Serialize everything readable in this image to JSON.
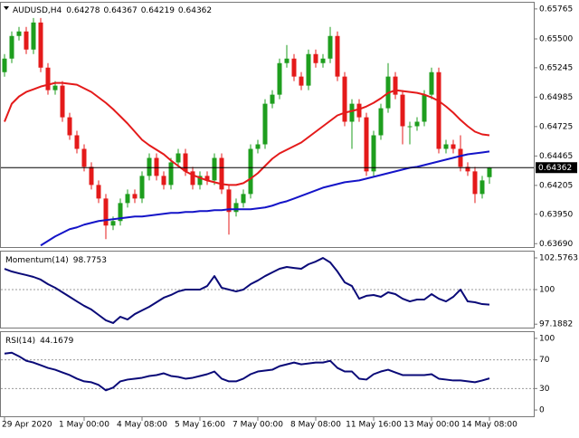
{
  "chart_data": [
    {
      "type": "candlestick",
      "symbol": "AUDUSD,H4",
      "categories": [
        "29 Apr 2020",
        null,
        null,
        null,
        null,
        null,
        null,
        null,
        null,
        null,
        null,
        "1 May 00:00",
        null,
        null,
        null,
        null,
        null,
        null,
        null,
        "4 May 08:00",
        null,
        null,
        null,
        null,
        null,
        null,
        null,
        "5 May 16:00",
        null,
        null,
        null,
        null,
        null,
        null,
        null,
        "7 May 00:00",
        null,
        null,
        null,
        null,
        null,
        null,
        null,
        "8 May 08:00",
        null,
        null,
        null,
        null,
        null,
        null,
        null,
        "11 May 16:00",
        null,
        null,
        null,
        null,
        null,
        null,
        null,
        "13 May 00:00",
        null,
        null,
        null,
        null,
        null,
        null,
        null,
        "14 May 08:00"
      ],
      "open": [
        0.65206,
        0.65326,
        0.65526,
        0.65566,
        0.65406,
        0.65645,
        0.65246,
        0.65047,
        0.65087,
        0.64807,
        0.64648,
        0.64528,
        0.64369,
        0.64209,
        0.64089,
        0.6385,
        0.6389,
        0.64049,
        0.64129,
        0.64089,
        0.64289,
        0.64448,
        0.64289,
        0.64209,
        0.64408,
        0.64488,
        0.64329,
        0.64209,
        0.64289,
        0.64249,
        0.64448,
        0.64169,
        0.6397,
        0.64049,
        0.64129,
        0.64528,
        0.64568,
        0.64927,
        0.65007,
        0.65286,
        0.65326,
        0.65167,
        0.65087,
        0.65366,
        0.65286,
        0.65326,
        0.65526,
        0.65167,
        0.64768,
        0.64927,
        0.64807,
        0.64329,
        0.64648,
        0.64887,
        0.65167,
        0.65007,
        0.64728,
        0.64728,
        0.64768,
        0.65007,
        0.65206,
        0.64528,
        0.64568,
        0.64528,
        0.64369,
        0.64329,
        0.64129,
        0.64278
      ],
      "high": [
        0.65366,
        0.65566,
        0.65606,
        0.65606,
        0.65685,
        0.65685,
        0.65286,
        0.65127,
        0.65127,
        0.64847,
        0.64688,
        0.64568,
        0.64409,
        0.64249,
        0.64129,
        0.6393,
        0.64089,
        0.64169,
        0.64169,
        0.64329,
        0.64488,
        0.64488,
        0.64329,
        0.64448,
        0.64528,
        0.64528,
        0.64369,
        0.64329,
        0.64329,
        0.64488,
        0.64488,
        0.64209,
        0.64089,
        0.64169,
        0.64568,
        0.64608,
        0.64967,
        0.65047,
        0.65326,
        0.65446,
        0.65366,
        0.65207,
        0.65406,
        0.65406,
        0.65366,
        0.65606,
        0.65566,
        0.65207,
        0.64967,
        0.64967,
        0.64847,
        0.64688,
        0.64927,
        0.65286,
        0.65207,
        0.65047,
        0.64768,
        0.64808,
        0.65047,
        0.65246,
        0.65246,
        0.64608,
        0.64608,
        0.64648,
        0.64409,
        0.64369,
        0.64289,
        0.64367
      ],
      "low": [
        0.65166,
        0.65286,
        0.65486,
        0.65366,
        0.65366,
        0.65206,
        0.65007,
        0.65007,
        0.64767,
        0.64608,
        0.64488,
        0.64329,
        0.64169,
        0.64049,
        0.6373,
        0.6381,
        0.6385,
        0.64009,
        0.64049,
        0.64049,
        0.64249,
        0.64249,
        0.64169,
        0.64169,
        0.64368,
        0.64289,
        0.64169,
        0.64169,
        0.64209,
        0.64209,
        0.64129,
        0.6377,
        0.6393,
        0.64009,
        0.64089,
        0.64488,
        0.64528,
        0.64887,
        0.64967,
        0.65246,
        0.65127,
        0.65047,
        0.65047,
        0.65246,
        0.65246,
        0.65286,
        0.65127,
        0.64728,
        0.64528,
        0.64767,
        0.64289,
        0.64289,
        0.64608,
        0.64847,
        0.64967,
        0.64568,
        0.64568,
        0.64688,
        0.64728,
        0.64967,
        0.64488,
        0.64488,
        0.64488,
        0.64329,
        0.64289,
        0.64049,
        0.64089,
        0.64219
      ],
      "close": [
        0.65326,
        0.65526,
        0.65566,
        0.65406,
        0.65645,
        0.65246,
        0.65047,
        0.65087,
        0.64807,
        0.64648,
        0.64528,
        0.64369,
        0.64209,
        0.64089,
        0.6385,
        0.6389,
        0.64049,
        0.64129,
        0.64089,
        0.64289,
        0.64448,
        0.64289,
        0.64209,
        0.64408,
        0.64488,
        0.64329,
        0.64209,
        0.64289,
        0.64249,
        0.64448,
        0.64169,
        0.6397,
        0.64049,
        0.64129,
        0.64528,
        0.64568,
        0.64927,
        0.65007,
        0.65286,
        0.65326,
        0.65167,
        0.65087,
        0.65366,
        0.65286,
        0.65326,
        0.65526,
        0.65167,
        0.64768,
        0.64927,
        0.64807,
        0.64329,
        0.64648,
        0.64887,
        0.65167,
        0.65007,
        0.64728,
        0.64728,
        0.64768,
        0.65007,
        0.65206,
        0.64528,
        0.64568,
        0.64528,
        0.64369,
        0.64329,
        0.64129,
        0.64249,
        0.64362
      ],
      "up_color": "#1e9e1e",
      "down_color": "#e41a1a",
      "series": [
        {
          "color": "#e41a1a",
          "values": [
            0.64768,
            0.64927,
            0.64991,
            0.65031,
            0.65055,
            0.65079,
            0.65095,
            0.65111,
            0.65111,
            0.65103,
            0.65095,
            0.65063,
            0.65031,
            0.64983,
            0.64935,
            0.64879,
            0.64816,
            0.64752,
            0.6468,
            0.64608,
            0.6456,
            0.6452,
            0.6448,
            0.64425,
            0.64377,
            0.64329,
            0.64297,
            0.64273,
            0.64249,
            0.64233,
            0.64217,
            0.64209,
            0.64209,
            0.64225,
            0.64265,
            0.64313,
            0.64377,
            0.64441,
            0.64488,
            0.6452,
            0.64552,
            0.64584,
            0.64632,
            0.6468,
            0.64728,
            0.64776,
            0.64824,
            0.64848,
            0.64863,
            0.64879,
            0.64903,
            0.64935,
            0.64975,
            0.65023,
            0.65047,
            0.65039,
            0.65031,
            0.65023,
            0.65007,
            0.64983,
            0.64951,
            0.64903,
            0.64848,
            0.64784,
            0.64728,
            0.6468,
            0.64656,
            0.64648
          ]
        },
        {
          "color": "#1414c8",
          "values": [
            null,
            null,
            null,
            null,
            null,
            0.63674,
            0.63714,
            0.63754,
            0.63786,
            0.63818,
            0.63834,
            0.63858,
            0.63874,
            0.6389,
            0.63898,
            0.63906,
            0.63914,
            0.63922,
            0.6393,
            0.6393,
            0.63938,
            0.63946,
            0.63954,
            0.63962,
            0.63962,
            0.6397,
            0.6397,
            0.63978,
            0.63978,
            0.63986,
            0.63986,
            0.63994,
            0.63994,
            0.63994,
            0.63994,
            0.64002,
            0.6401,
            0.64026,
            0.64049,
            0.64065,
            0.64089,
            0.64113,
            0.64137,
            0.64161,
            0.64185,
            0.64201,
            0.64217,
            0.64233,
            0.64241,
            0.64249,
            0.64265,
            0.64281,
            0.64297,
            0.64313,
            0.64329,
            0.64345,
            0.64361,
            0.64369,
            0.64385,
            0.64401,
            0.64417,
            0.64433,
            0.64449,
            0.64465,
            0.6448,
            0.64488,
            0.64496,
            0.64505
          ]
        }
      ],
      "ylim": [
        0.6366,
        0.6582
      ],
      "yticks": [
        0.65765,
        {
          "value": 0.655,
          "label": "0.65500"
        },
        0.65245,
        0.64985,
        0.64725,
        0.64465,
        0.64205,
        {
          "value": 0.6395,
          "label": "0.63950"
        },
        {
          "value": 0.6369,
          "label": "0.63690"
        }
      ]
    },
    {
      "type": "line",
      "title": "Momentum(14)",
      "series": [
        {
          "color": "#0a0a78",
          "values": [
            101.69,
            101.47,
            101.32,
            101.18,
            101.03,
            100.81,
            100.44,
            100.15,
            99.78,
            99.41,
            99.04,
            98.68,
            98.38,
            97.94,
            97.5,
            97.28,
            97.79,
            97.57,
            98.01,
            98.31,
            98.6,
            98.97,
            99.34,
            99.56,
            99.85,
            100,
            100,
            100,
            100.29,
            101.1,
            100.15,
            100,
            99.85,
            100,
            100.44,
            100.74,
            101.1,
            101.4,
            101.69,
            101.84,
            101.76,
            101.69,
            102.06,
            102.28,
            102.57,
            102.21,
            101.47,
            100.59,
            100.29,
            99.26,
            99.49,
            99.56,
            99.41,
            99.78,
            99.63,
            99.26,
            99.04,
            99.19,
            99.19,
            99.63,
            99.26,
            99.04,
            99.41,
            100,
            99.04,
            98.97,
            98.82,
            98.7753
          ]
        }
      ],
      "ylim": [
        96.91,
        103.09
      ],
      "yticks": [
        102.5763,
        100,
        97.1882
      ],
      "levels": [
        100
      ]
    },
    {
      "type": "line",
      "title": "RSI(14)",
      "series": [
        {
          "color": "#0a0a78",
          "values": [
            78.75,
            80,
            75,
            68.75,
            66.25,
            62.5,
            58.75,
            56.25,
            52.5,
            48.75,
            43.75,
            40,
            38.75,
            35,
            27.5,
            31.25,
            40,
            42.5,
            43.75,
            45,
            47.5,
            48.75,
            51.25,
            47.5,
            46.25,
            43.75,
            45,
            47.5,
            50,
            53.75,
            43.75,
            40,
            40,
            43.75,
            50,
            53.75,
            55,
            56.25,
            61.25,
            63.75,
            66.25,
            63.75,
            65,
            66.25,
            66.25,
            68.75,
            58.75,
            53.75,
            53.75,
            43.75,
            42.5,
            50,
            53.75,
            56.25,
            52.5,
            48.75,
            48.75,
            48.75,
            48.75,
            50,
            43.75,
            42.5,
            41.25,
            41.25,
            40,
            38.75,
            41.25,
            44.1679
          ]
        }
      ],
      "ylim": [
        -8.75,
        108.75
      ],
      "yticks": [
        100,
        70,
        30,
        0
      ],
      "levels": [
        70,
        30
      ]
    }
  ]
}
